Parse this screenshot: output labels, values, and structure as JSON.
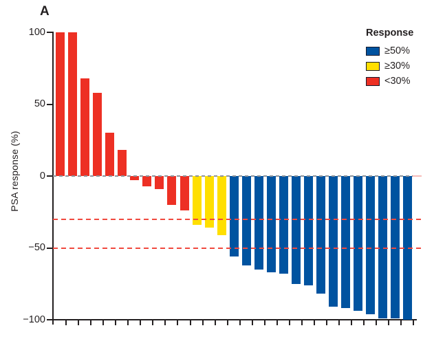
{
  "panel_label": "A",
  "legend": {
    "title": "Response",
    "position": "top-right",
    "items": [
      {
        "label": "≥50%",
        "color_key": "blue"
      },
      {
        "label": "≥30%",
        "color_key": "yellow"
      },
      {
        "label": "<30%",
        "color_key": "red"
      }
    ]
  },
  "chart_data": {
    "type": "bar",
    "subtype": "waterfall",
    "title": "",
    "xlabel": "",
    "ylabel": "PSA response (%)",
    "ylim": [
      -100,
      100
    ],
    "yticks": [
      100,
      50,
      0,
      -50,
      -100
    ],
    "ytick_labels": [
      "100",
      "50",
      "0",
      "−50",
      "−100"
    ],
    "x_axis": {
      "n_ticks": 29,
      "labels": []
    },
    "grid": "off",
    "values": [
      100,
      100,
      68,
      58,
      30,
      18,
      -3,
      -7,
      -9,
      -20,
      -24,
      -34,
      -36,
      -41,
      -56,
      -62,
      -65,
      -67,
      -68,
      -75,
      -76,
      -82,
      -91,
      -92,
      -94,
      -96,
      -99,
      -99,
      -100
    ],
    "color_rule": "bar value <= -50 is blue (>=50% response); -50 < value <= -30 is yellow (>=30% response); value > -30 is red (<30% response)",
    "color_thresholds": {
      "blue_max": -50,
      "yellow_max": -30
    },
    "colors": {
      "blue": "#0053a0",
      "yellow": "#ffdf00",
      "red": "#ed3024",
      "reference_line": "#f0493e",
      "zero_line": "#8d939b",
      "zero_line_extension": "#f7bcb8",
      "axis": "#231f20"
    },
    "reference_lines": [
      {
        "y": -30,
        "style": "dashed"
      },
      {
        "y": -50,
        "style": "dashed"
      }
    ],
    "zero_line": {
      "y": 0,
      "style": "dashed"
    }
  }
}
